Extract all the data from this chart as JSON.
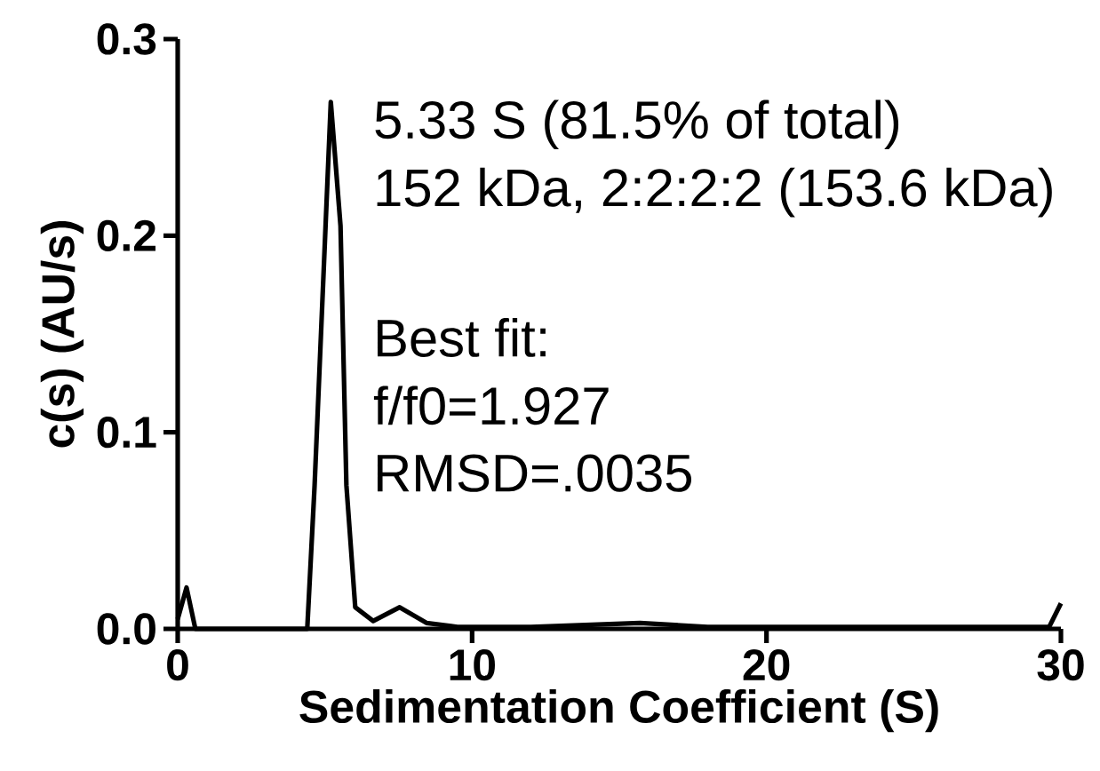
{
  "chart_data": {
    "type": "line",
    "xlabel": "Sedimentation Coefficient (S)",
    "ylabel": "c(s) (AU/s)",
    "annotations": [
      "5.33 S (81.5% of total)",
      "152 kDa, 2:2:2:2 (153.6 kDa)",
      "Best fit:",
      "f/f0=1.927",
      "RMSD=.0035"
    ],
    "x": [
      0,
      0.3,
      0.6,
      1.5,
      3,
      4.4,
      4.65,
      5.2,
      5.53,
      5.73,
      6.03,
      6.64,
      7.54,
      8.45,
      9.5,
      12,
      15.7,
      18,
      22,
      26,
      29.6,
      30
    ],
    "series": [
      {
        "color": "#000000",
        "values": [
          0.005,
          0.021,
          0,
          0,
          0,
          0,
          0.073,
          0.268,
          0.205,
          0.073,
          0.011,
          0.004,
          0.011,
          0.003,
          0.001,
          0.001,
          0.003,
          0.001,
          0.001,
          0.001,
          0.001,
          0.013
        ]
      }
    ],
    "xlim": [
      0,
      30
    ],
    "ylim": [
      0,
      0.3
    ],
    "xticks": [
      0,
      10,
      20,
      30
    ],
    "yticks": [
      {
        "value": 0,
        "label": "0.0"
      },
      0.1,
      0.2,
      0.3
    ],
    "grid": false,
    "marker": "none",
    "line_style": "solid"
  }
}
